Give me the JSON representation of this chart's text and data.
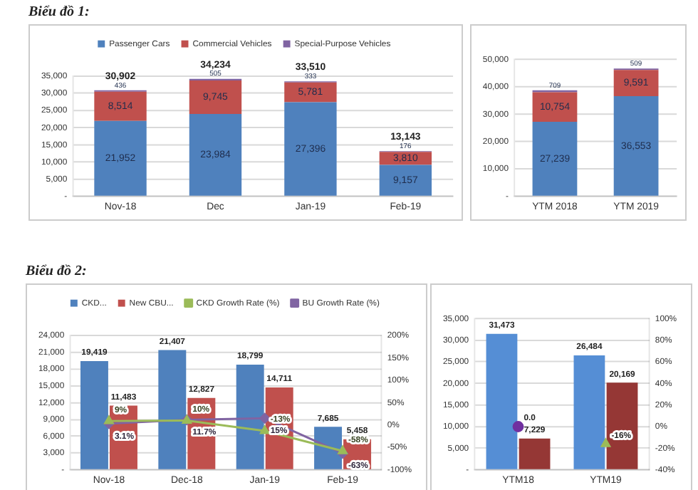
{
  "chart_data": [
    {
      "type": "bar",
      "title": "Biểu đồ 1:",
      "categories": [
        "Nov-18",
        "Dec",
        "Jan-19",
        "Feb-19"
      ],
      "stacked": true,
      "legend": "top",
      "grid": "y",
      "ylim": [
        0,
        35000
      ],
      "yticks": [
        {
          "value": 0,
          "label": "-"
        },
        {
          "value": 5000,
          "label": "5,000"
        },
        {
          "value": 10000,
          "label": "10,000"
        },
        {
          "value": 15000,
          "label": "15,000"
        },
        {
          "value": 20000,
          "label": "20,000"
        },
        {
          "value": 25000,
          "label": "25,000"
        },
        {
          "value": 30000,
          "label": "30,000"
        },
        {
          "value": 35000,
          "label": "35,000"
        }
      ],
      "totals": [
        "30,902",
        "34,234",
        "33,510",
        "13,143"
      ],
      "series": [
        {
          "name": "Passenger Cars",
          "color": "#4f81bd",
          "values": [
            21952,
            23984,
            27396,
            9157
          ],
          "value_labels": [
            "21,952",
            "23,984",
            "27,396",
            "9,157"
          ]
        },
        {
          "name": "Commercial Vehicles",
          "color": "#c0504d",
          "values": [
            8514,
            9745,
            5781,
            3810
          ],
          "value_labels": [
            "8,514",
            "9,745",
            "5,781",
            "3,810"
          ]
        },
        {
          "name": "Special-Purpose Vehicles",
          "color": "#8064a2",
          "values": [
            436,
            505,
            333,
            176
          ],
          "value_labels": [
            "436",
            "505",
            "333",
            "176"
          ]
        }
      ]
    },
    {
      "type": "bar",
      "categories": [
        "YTM 2018",
        "YTM 2019"
      ],
      "stacked": true,
      "grid": "y",
      "ylim": [
        0,
        50000
      ],
      "yticks": [
        {
          "value": 0,
          "label": "-"
        },
        {
          "value": 10000,
          "label": "10,000"
        },
        {
          "value": 20000,
          "label": "20,000"
        },
        {
          "value": 30000,
          "label": "30,000"
        },
        {
          "value": 40000,
          "label": "40,000"
        },
        {
          "value": 50000,
          "label": "50,000"
        }
      ],
      "series": [
        {
          "color": "#4f81bd",
          "values": [
            27239,
            36553
          ],
          "value_labels": [
            "27,239",
            "36,553"
          ]
        },
        {
          "color": "#c0504d",
          "values": [
            10754,
            9591
          ],
          "value_labels": [
            "10,754",
            "9,591"
          ]
        },
        {
          "color": "#8064a2",
          "values": [
            709,
            509
          ],
          "value_labels": [
            "709",
            "509"
          ]
        }
      ]
    },
    {
      "type": "bar",
      "title": "Biểu đồ 2:",
      "categories": [
        "Nov-18",
        "Dec-18",
        "Jan-19",
        "Feb-19"
      ],
      "legend": "top",
      "grid": "y",
      "ylim": [
        0,
        24000
      ],
      "yticks": [
        {
          "value": 0,
          "label": "-"
        },
        {
          "value": 3000,
          "label": "3,000"
        },
        {
          "value": 6000,
          "label": "6,000"
        },
        {
          "value": 9000,
          "label": "9,000"
        },
        {
          "value": 12000,
          "label": "12,000"
        },
        {
          "value": 15000,
          "label": "15,000"
        },
        {
          "value": 18000,
          "label": "18,000"
        },
        {
          "value": 21000,
          "label": "21,000"
        },
        {
          "value": 24000,
          "label": "24,000"
        }
      ],
      "y2lim": [
        -100,
        200
      ],
      "y2ticks": [
        {
          "value": -100,
          "label": "-100%"
        },
        {
          "value": -50,
          "label": "-50%"
        },
        {
          "value": 0,
          "label": "0%"
        },
        {
          "value": 50,
          "label": "50%"
        },
        {
          "value": 100,
          "label": "100%"
        },
        {
          "value": 150,
          "label": "150%"
        },
        {
          "value": 200,
          "label": "200%"
        }
      ],
      "series": [
        {
          "name": "CKD...",
          "color": "#4f81bd",
          "values": [
            19419,
            21407,
            18799,
            7685
          ],
          "value_labels": [
            "19,419",
            "21,407",
            "18,799",
            "7,685"
          ]
        },
        {
          "name": "New CBU...",
          "color": "#c0504d",
          "values": [
            11483,
            12827,
            14711,
            5458
          ],
          "value_labels": [
            "11,483",
            "12,827",
            "14,711",
            "5,458"
          ]
        },
        {
          "name": "CKD Growth Rate (%)",
          "type": "line",
          "axis": "y2",
          "marker": "triangle",
          "color": "#9bbb59",
          "values": [
            9,
            10,
            -13,
            -58
          ],
          "value_labels": [
            "9%",
            "10%",
            "-13%",
            "-58%"
          ]
        },
        {
          "name": "BU Growth Rate (%)",
          "type": "line",
          "axis": "y2",
          "marker": "diamond",
          "color": "#8064a2",
          "values": [
            3.1,
            11.7,
            15,
            -63
          ],
          "value_labels": [
            "3.1%",
            "11.7%",
            "15%",
            "-63%"
          ]
        }
      ]
    },
    {
      "type": "bar",
      "categories": [
        "YTM18",
        "YTM19"
      ],
      "grid": "y",
      "ylim": [
        0,
        35000
      ],
      "yticks": [
        {
          "value": 0,
          "label": "-"
        },
        {
          "value": 5000,
          "label": "5,000"
        },
        {
          "value": 10000,
          "label": "10,000"
        },
        {
          "value": 15000,
          "label": "15,000"
        },
        {
          "value": 20000,
          "label": "20,000"
        },
        {
          "value": 25000,
          "label": "25,000"
        },
        {
          "value": 30000,
          "label": "30,000"
        },
        {
          "value": 35000,
          "label": "35,000"
        }
      ],
      "y2lim": [
        -40,
        100
      ],
      "y2ticks": [
        {
          "value": -40,
          "label": "-40%"
        },
        {
          "value": -20,
          "label": "-20%"
        },
        {
          "value": 0,
          "label": "0%"
        },
        {
          "value": 20,
          "label": "20%"
        },
        {
          "value": 40,
          "label": "40%"
        },
        {
          "value": 60,
          "label": "60%"
        },
        {
          "value": 80,
          "label": "80%"
        },
        {
          "value": 100,
          "label": "100%"
        }
      ],
      "series": [
        {
          "color": "#558ed5",
          "values": [
            31473,
            26484
          ],
          "value_labels": [
            "31,473",
            "26,484"
          ]
        },
        {
          "color": "#953735",
          "values": [
            7229,
            20169
          ],
          "value_labels": [
            "7,229",
            "20,169"
          ]
        },
        {
          "type": "scatter",
          "axis": "y2",
          "marker": "circle",
          "color": "#7030a0",
          "values": [
            0,
            null
          ],
          "value_labels": [
            "0.0",
            null
          ]
        },
        {
          "type": "scatter",
          "axis": "y2",
          "marker": "triangle",
          "color": "#9bbb59",
          "values": [
            null,
            -16
          ],
          "value_labels": [
            null,
            "-16%"
          ]
        }
      ]
    }
  ]
}
